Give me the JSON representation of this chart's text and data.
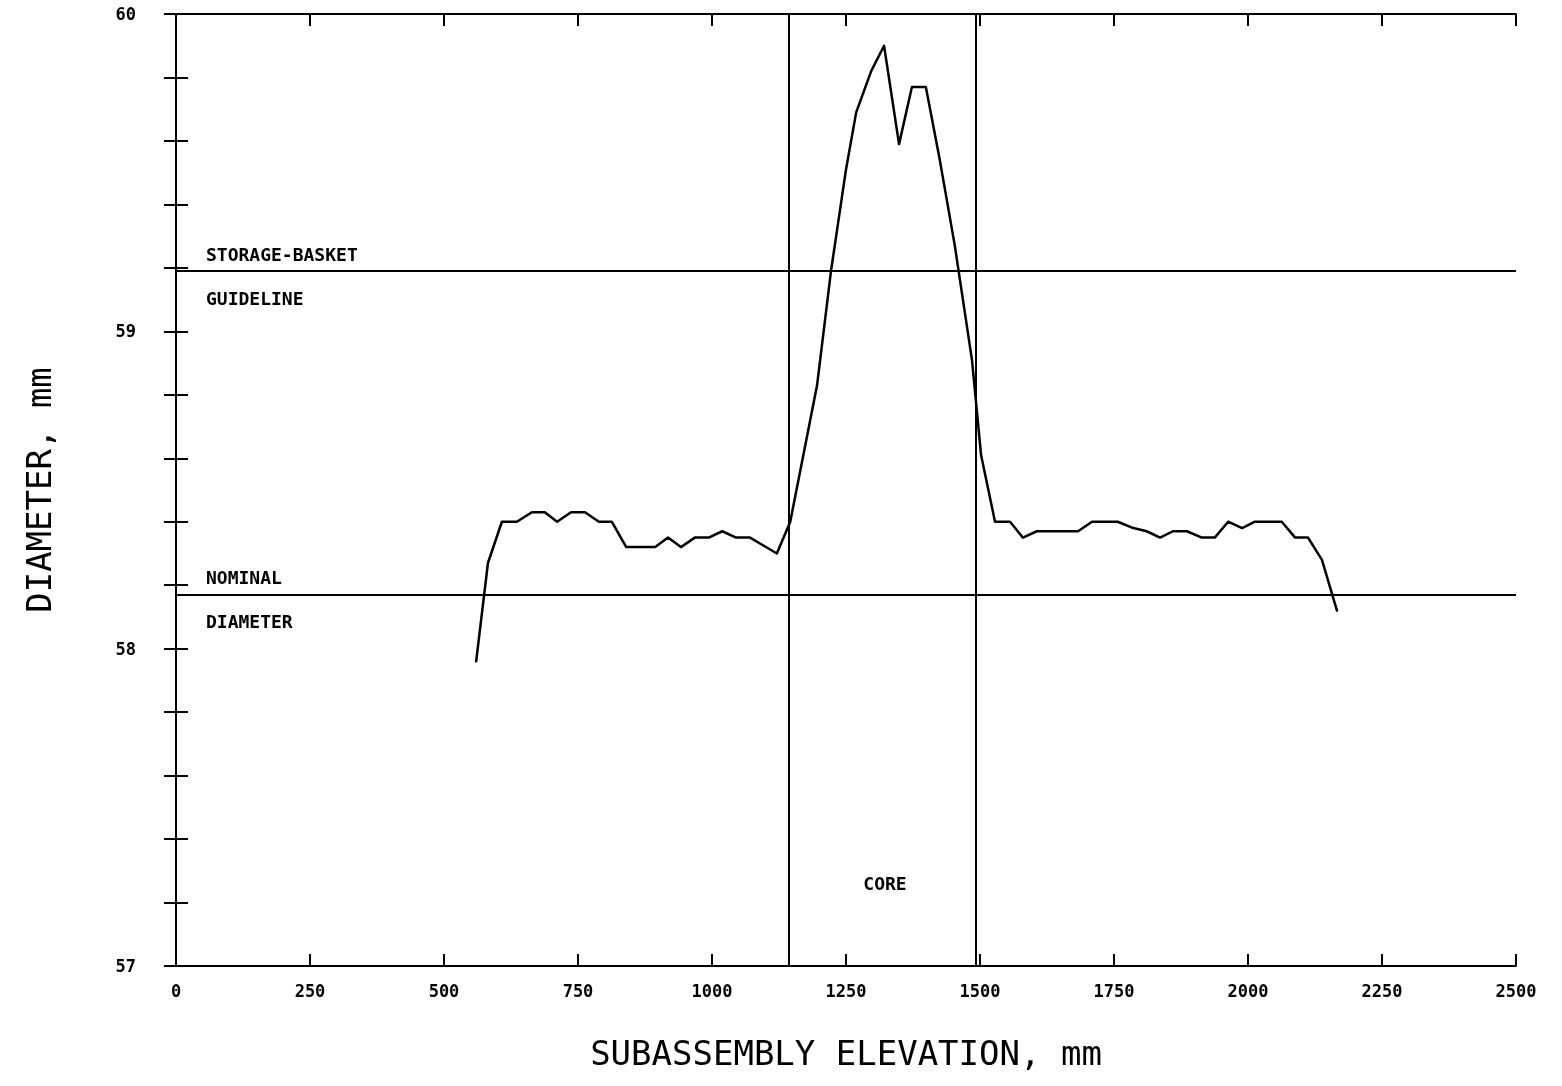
{
  "chart_data": {
    "type": "line",
    "xlabel": "SUBASSEMBLY ELEVATION, mm",
    "ylabel": "DIAMETER, mm",
    "xlim": [
      0,
      2500
    ],
    "xticks": [
      0,
      250,
      500,
      750,
      1000,
      1250,
      1500,
      1750,
      2000,
      2250,
      2500
    ],
    "ylim": [
      57,
      60
    ],
    "yticks": [
      57,
      {
        "value": 57.2,
        "label": null
      },
      {
        "value": 57.4,
        "label": null
      },
      {
        "value": 57.6,
        "label": null
      },
      {
        "value": 57.8,
        "label": null
      },
      58,
      {
        "value": 58.2,
        "label": null
      },
      {
        "value": 58.4,
        "label": null
      },
      {
        "value": 58.6,
        "label": null
      },
      {
        "value": 58.8,
        "label": null
      },
      59,
      {
        "value": 59.2,
        "label": null
      },
      {
        "value": 59.4,
        "label": null
      },
      {
        "value": 59.6,
        "label": null
      },
      {
        "value": 59.8,
        "label": null
      },
      60
    ],
    "grid": false,
    "marker": "none",
    "line_style": "solid",
    "series": [
      {
        "color": "#000000",
        "x": [
          560,
          582,
          608,
          636,
          664,
          688,
          711,
          737,
          763,
          789,
          813,
          840,
          894,
          918,
          942,
          968,
          994,
          1019,
          1045,
          1071,
          1121,
          1146,
          1196,
          1222,
          1250,
          1269,
          1297,
          1321,
          1349,
          1373,
          1399,
          1425,
          1453,
          1485,
          1502,
          1528,
          1556,
          1580,
          1606,
          1683,
          1709,
          1757,
          1786,
          1811,
          1836,
          1860,
          1886,
          1914,
          1938,
          1963,
          1989,
          2013,
          2063,
          2088,
          2112,
          2138,
          2166
        ],
        "values": [
          57.96,
          58.27,
          58.4,
          58.4,
          58.43,
          58.43,
          58.4,
          58.43,
          58.43,
          58.4,
          58.4,
          58.32,
          58.32,
          58.35,
          58.32,
          58.35,
          58.35,
          58.37,
          58.35,
          58.35,
          58.3,
          58.4,
          58.83,
          59.19,
          59.51,
          59.69,
          59.82,
          59.9,
          59.59,
          59.77,
          59.77,
          59.54,
          59.27,
          58.91,
          58.61,
          58.4,
          58.4,
          58.35,
          58.37,
          58.37,
          58.4,
          58.4,
          58.38,
          58.37,
          58.35,
          58.37,
          58.37,
          58.35,
          58.35,
          58.4,
          58.38,
          58.4,
          58.4,
          58.35,
          58.35,
          58.28,
          58.12
        ]
      }
    ],
    "ref_lines": [
      {
        "axis": "y",
        "value": 59.19,
        "label": "STORAGE-BASKET GUIDELINE",
        "color": "#000000"
      },
      {
        "axis": "y",
        "value": 58.17,
        "label": "NOMINAL DIAMETER",
        "color": "#000000"
      },
      {
        "axis": "x",
        "value": 1143,
        "color": "#000000"
      },
      {
        "axis": "x",
        "value": 1493,
        "color": "#000000"
      }
    ],
    "annotations": [
      "CORE"
    ]
  }
}
